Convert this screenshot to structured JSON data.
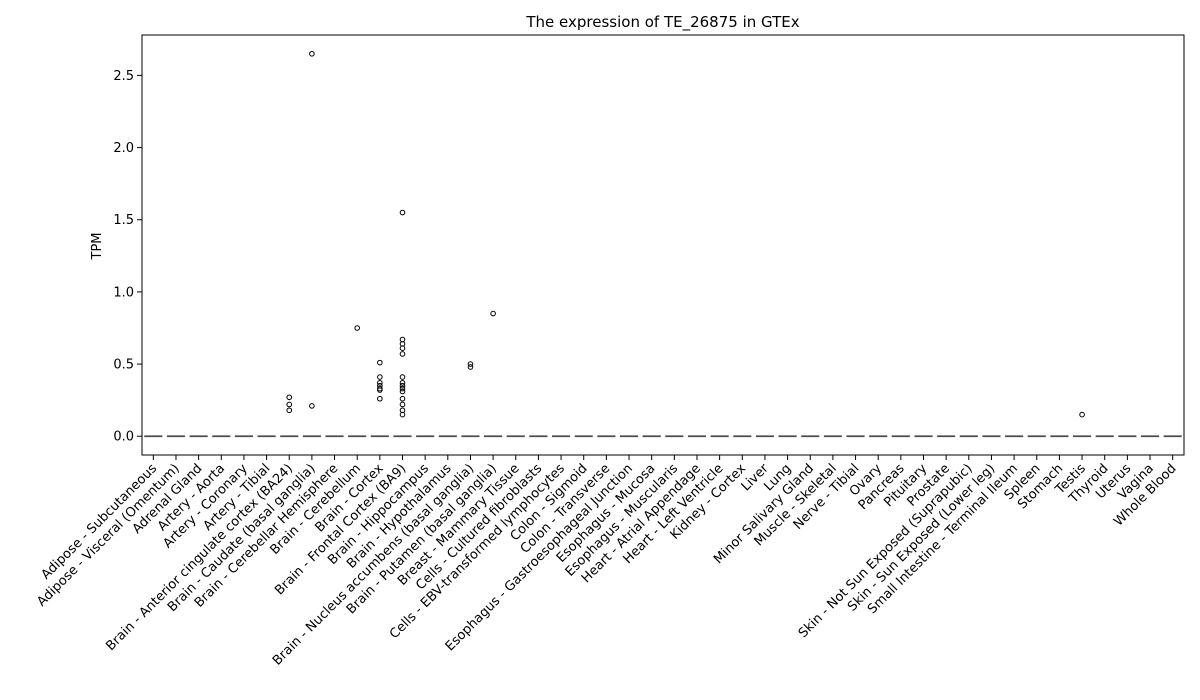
{
  "chart_data": {
    "type": "box",
    "title": "The expression of TE_26875 in GTEx",
    "xlabel": "",
    "ylabel": "TPM",
    "ylim": [
      -0.13,
      2.78
    ],
    "yticks": [
      "0.0",
      "0.5",
      "1.0",
      "1.5",
      "2.0",
      "2.5"
    ],
    "grid": false,
    "categories": [
      "Adipose - Subcutaneous",
      "Adipose - Visceral (Omentum)",
      "Adrenal Gland",
      "Artery - Aorta",
      "Artery - Coronary",
      "Artery - Tibial",
      "Brain - Anterior cingulate cortex (BA24)",
      "Brain - Caudate (basal ganglia)",
      "Brain - Cerebellar Hemisphere",
      "Brain - Cerebellum",
      "Brain - Cortex",
      "Brain - Frontal Cortex (BA9)",
      "Brain - Hippocampus",
      "Brain - Hypothalamus",
      "Brain - Nucleus accumbens (basal ganglia)",
      "Brain - Putamen (basal ganglia)",
      "Breast - Mammary Tissue",
      "Cells - Cultured fibroblasts",
      "Cells - EBV-transformed lymphocytes",
      "Colon - Sigmoid",
      "Colon - Transverse",
      "Esophagus - Gastroesophageal Junction",
      "Esophagus - Mucosa",
      "Esophagus - Muscularis",
      "Heart - Atrial Appendage",
      "Heart - Left Ventricle",
      "Kidney - Cortex",
      "Liver",
      "Lung",
      "Minor Salivary Gland",
      "Muscle - Skeletal",
      "Nerve - Tibial",
      "Ovary",
      "Pancreas",
      "Pituitary",
      "Prostate",
      "Skin - Not Sun Exposed (Suprapubic)",
      "Skin - Sun Exposed (Lower leg)",
      "Small Intestine - Terminal Ileum",
      "Spleen",
      "Stomach",
      "Testis",
      "Thyroid",
      "Uterus",
      "Vagina",
      "Whole Blood"
    ],
    "median": 0,
    "outliers": [
      {
        "category": "Brain - Anterior cingulate cortex (BA24)",
        "values": [
          0.27,
          0.22,
          0.18
        ]
      },
      {
        "category": "Brain - Caudate (basal ganglia)",
        "values": [
          2.65,
          0.21
        ]
      },
      {
        "category": "Brain - Cerebellum",
        "values": [
          0.75
        ]
      },
      {
        "category": "Brain - Cortex",
        "values": [
          0.51,
          0.41,
          0.37,
          0.35,
          0.33,
          0.32,
          0.26
        ]
      },
      {
        "category": "Brain - Frontal Cortex (BA9)",
        "values": [
          1.55,
          0.67,
          0.64,
          0.61,
          0.57,
          0.41,
          0.37,
          0.35,
          0.33,
          0.31,
          0.26,
          0.22,
          0.18,
          0.15
        ]
      },
      {
        "category": "Brain - Nucleus accumbens (basal ganglia)",
        "values": [
          0.5,
          0.48
        ]
      },
      {
        "category": "Brain - Putamen (basal ganglia)",
        "values": [
          0.85
        ]
      },
      {
        "category": "Testis",
        "values": [
          0.15
        ]
      }
    ],
    "colors": {
      "median_line": "#4c4c4c",
      "box": "#000000",
      "outlier_edge": "#000000"
    }
  }
}
